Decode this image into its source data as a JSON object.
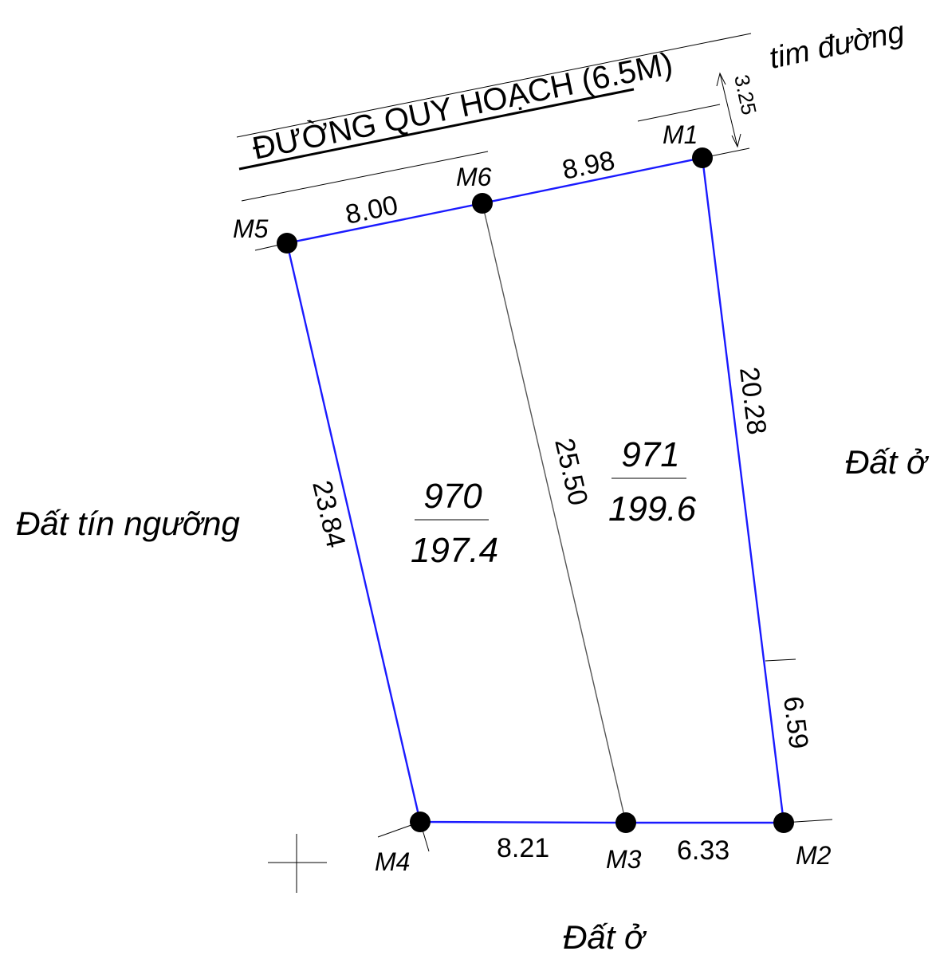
{
  "road": {
    "name": "ĐƯỜNG QUY HOẠCH (6.5M)",
    "centerline_label": "tim đường",
    "offset_label": "3.25"
  },
  "points": {
    "M1": "M1",
    "M2": "M2",
    "M3": "M3",
    "M4": "M4",
    "M5": "M5",
    "M6": "M6"
  },
  "dimensions": {
    "m5_m6": "8.00",
    "m6_m1": "8.98",
    "m1_m2_upper": "20.28",
    "m1_m2_lower": "6.59",
    "m5_m4": "23.84",
    "m6_m3": "25.50",
    "m4_m3": "8.21",
    "m3_m2": "6.33"
  },
  "parcels": [
    {
      "number": "970",
      "area": "197.4"
    },
    {
      "number": "971",
      "area": "199.6"
    }
  ],
  "neighbors": {
    "west": "Đất tín ngưỡng",
    "east": "Đất ở",
    "south": "Đất ở"
  },
  "colors": {
    "boundary": "#1a1aff",
    "divider": "#555555",
    "ink": "#000000"
  }
}
